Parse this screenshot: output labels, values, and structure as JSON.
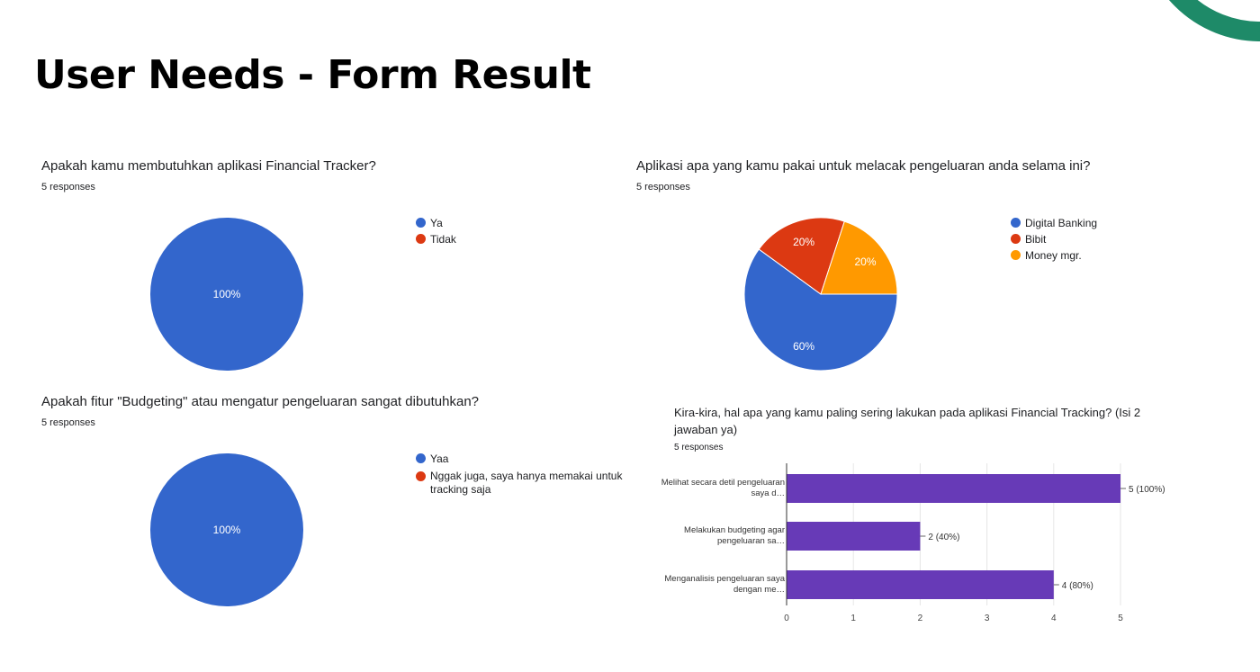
{
  "page": {
    "title": "User Needs - Form Result",
    "accent_color": "#1e8a68"
  },
  "chart_data": [
    {
      "type": "pie",
      "title": "Apakah kamu membutuhkan aplikasi Financial Tracker?",
      "subtitle": "5 responses",
      "labels": [
        "Ya",
        "Tidak"
      ],
      "values": [
        100,
        0
      ],
      "value_labels": [
        "100%",
        ""
      ],
      "colors": [
        "#3366cc",
        "#dc3912"
      ],
      "legend": "right"
    },
    {
      "type": "pie",
      "title": "Aplikasi apa yang kamu pakai untuk melacak pengeluaran anda selama ini?",
      "subtitle": "5 responses",
      "labels": [
        "Digital Banking",
        "Bibit",
        "Money mgr."
      ],
      "values": [
        60,
        20,
        20
      ],
      "value_labels": [
        "60%",
        "20%",
        "20%"
      ],
      "colors": [
        "#3366cc",
        "#dc3912",
        "#ff9900"
      ],
      "legend": "right"
    },
    {
      "type": "pie",
      "title": "Apakah fitur \"Budgeting\" atau mengatur pengeluaran sangat dibutuhkan?",
      "subtitle": "5 responses",
      "labels": [
        "Yaa",
        "Nggak juga, saya hanya memakai untuk tracking saja"
      ],
      "values": [
        100,
        0
      ],
      "value_labels": [
        "100%",
        ""
      ],
      "colors": [
        "#3366cc",
        "#dc3912"
      ],
      "legend": "right"
    },
    {
      "type": "bar",
      "orientation": "horizontal",
      "title": "Kira-kira, hal apa yang kamu paling sering lakukan pada aplikasi Financial Tracking? (Isi 2 jawaban ya)",
      "subtitle": "5 responses",
      "categories": [
        [
          "Melihat secara detil pengeluaran",
          "saya d…"
        ],
        [
          "Melakukan budgeting agar",
          "pengeluaran sa…"
        ],
        [
          "Menganalisis pengeluaran saya",
          "dengan me…"
        ]
      ],
      "values": [
        5,
        2,
        4
      ],
      "value_labels": [
        "5 (100%)",
        "2 (40%)",
        "4 (80%)"
      ],
      "xlim": [
        0,
        5
      ],
      "xticks": [
        "0",
        "1",
        "2",
        "3",
        "4",
        "5"
      ],
      "color": "#673ab7",
      "grid": true
    }
  ]
}
